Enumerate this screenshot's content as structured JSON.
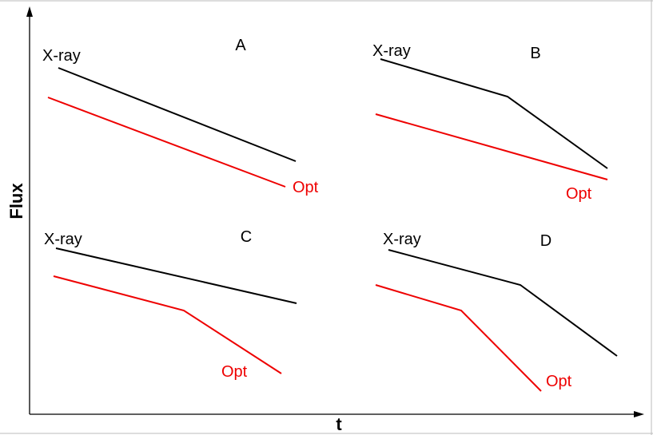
{
  "axes": {
    "x_label": "t",
    "y_label": "Flux"
  },
  "colors": {
    "xray": "#000000",
    "optical": "#ee0000",
    "axis": "#000000",
    "frame": "#bbbbbb"
  },
  "panels": [
    {
      "id": "A",
      "title": "A",
      "xray_label": "X-ray",
      "opt_label": "Opt"
    },
    {
      "id": "B",
      "title": "B",
      "xray_label": "X-ray",
      "opt_label": "Opt"
    },
    {
      "id": "C",
      "title": "C",
      "xray_label": "X-ray",
      "opt_label": "Opt"
    },
    {
      "id": "D",
      "title": "D",
      "xray_label": "X-ray",
      "opt_label": "Opt"
    }
  ]
}
